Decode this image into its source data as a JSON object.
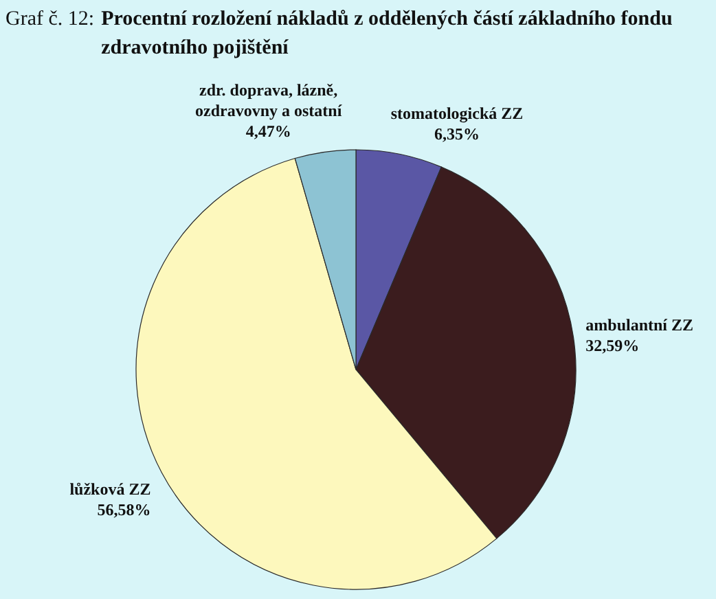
{
  "chart_data": {
    "type": "pie",
    "title": "Graf č. 12: Procentní rozložení nákladů z oddělených částí základního fondu zdravotního pojištění",
    "categories": [
      "stomatologická ZZ",
      "ambulantní ZZ",
      "lůžková ZZ",
      "zdr. doprava, lázně, ozdravovny a ostatní"
    ],
    "values": [
      6.35,
      32.59,
      56.58,
      4.47
    ],
    "value_labels": [
      "6,35%",
      "32,59%",
      "56,58%",
      "4,47%"
    ],
    "colors": [
      "#5a57a5",
      "#3b1c1e",
      "#fdf8bd",
      "#8dc3d3"
    ]
  }
}
